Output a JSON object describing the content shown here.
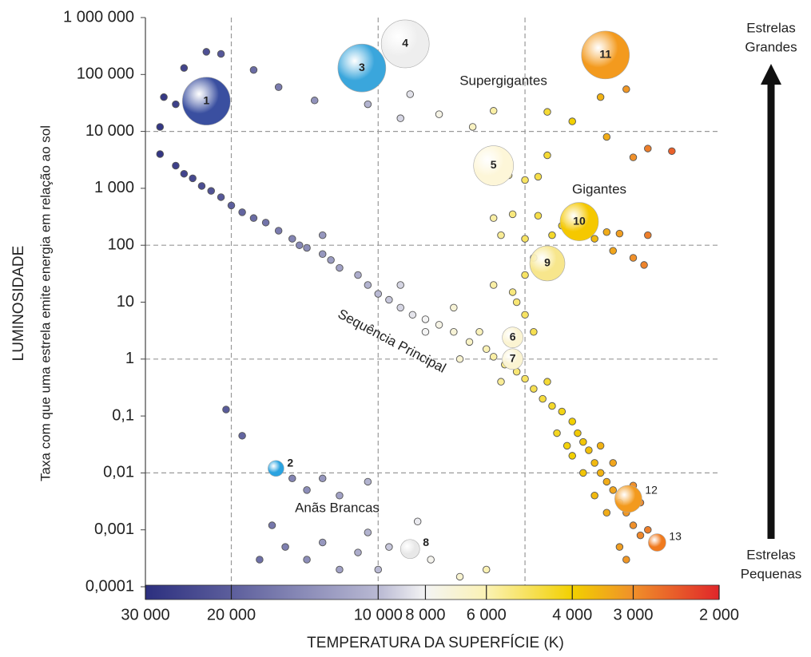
{
  "chart_data": {
    "type": "scatter",
    "x_label": "TEMPERATURA DA SUPERFÍCIE (K)",
    "y_label": "LUMINOSIDADE",
    "y_sublabel": "Taxa com que uma estrela emite energia em relação ao sol",
    "log_x": true,
    "log_y": true,
    "x_reversed": true,
    "xlim": [
      30000,
      2000
    ],
    "ylim": [
      0.0001,
      1000000
    ],
    "xticks": [
      {
        "value": 30000,
        "label": "30 000"
      },
      {
        "value": 20000,
        "label": "20 000"
      },
      {
        "value": 10000,
        "label": "10 000"
      },
      {
        "value": 8000,
        "label": "8 000"
      },
      {
        "value": 6000,
        "label": "6 000"
      },
      {
        "value": 4000,
        "label": "4 000"
      },
      {
        "value": 3000,
        "label": "3 000"
      },
      {
        "value": 2000,
        "label": "2 000"
      }
    ],
    "yticks": [
      {
        "value": 0.0001,
        "label": "0,0001"
      },
      {
        "value": 0.001,
        "label": "0,001"
      },
      {
        "value": 0.01,
        "label": "0,01"
      },
      {
        "value": 0.1,
        "label": "0,1"
      },
      1,
      10,
      100,
      {
        "value": 1000,
        "label": "1 000"
      },
      {
        "value": 10000,
        "label": "10 000"
      },
      {
        "value": 100000,
        "label": "100 000"
      },
      {
        "value": 1000000,
        "label": "1 000 000"
      }
    ],
    "grid": true,
    "xgrid": [
      20000,
      10000,
      5000
    ],
    "ygrid": [
      10000,
      100,
      1,
      0.01
    ],
    "colorscale": [
      {
        "value": 30000,
        "color": "#2c2f7f"
      },
      {
        "value": 20000,
        "color": "#5c5e9c"
      },
      {
        "value": 10000,
        "color": "#b9b9d3"
      },
      {
        "value": 8000,
        "color": "#f4f4f4"
      },
      {
        "value": 6000,
        "color": "#fbf2b4"
      },
      {
        "value": 4000,
        "color": "#f2d000"
      },
      {
        "value": 3000,
        "color": "#f0902a"
      },
      {
        "value": 2000,
        "color": "#e0262a"
      }
    ],
    "points": {
      "x": [
        28000,
        26000,
        25000,
        24000,
        23000,
        22000,
        21000,
        20000,
        19000,
        18000,
        17000,
        16000,
        15000,
        14500,
        14000,
        13000,
        12500,
        12000,
        11000,
        10500,
        10000,
        9500,
        9000,
        8500,
        8000,
        7500,
        7000,
        6500,
        6000,
        5800,
        5500,
        5200,
        5000,
        4800,
        4600,
        4400,
        4200,
        4000,
        3900,
        3800,
        3700,
        3600,
        3500,
        3400,
        3300,
        3200,
        3100,
        3000,
        2900,
        3200,
        13000,
        9000,
        8000,
        7000,
        6800,
        6200,
        5600,
        4500,
        4100,
        3500,
        3300,
        3000,
        2900,
        3400,
        3600,
        3100,
        2800,
        3800,
        4000,
        4300,
        20500,
        19000,
        15000,
        14000,
        13000,
        12000,
        10500,
        16500,
        15500,
        14000,
        13000,
        12000,
        11000,
        10500,
        10000,
        9500,
        8300,
        7800,
        6800,
        6000,
        17500,
        28000,
        27500,
        26000,
        25000,
        22500,
        21000,
        18000,
        16000,
        13500,
        10500,
        9000,
        8600,
        7500,
        6400,
        5800,
        4500,
        4000,
        3500,
        3100,
        3400,
        2800,
        2500,
        3000,
        5400,
        5000,
        4700,
        4500,
        5800,
        5600,
        5300,
        5000,
        4700,
        4400,
        4200,
        3900,
        3600,
        3400,
        3200,
        2800,
        3300,
        3000,
        2850,
        4800,
        5000,
        5300,
        5800,
        5000,
        4800,
        5200
      ],
      "y": [
        4000,
        2500,
        1800,
        1500,
        1100,
        900,
        700,
        500,
        380,
        300,
        250,
        180,
        130,
        100,
        90,
        70,
        55,
        40,
        30,
        20,
        14,
        11,
        8,
        6,
        5,
        4,
        3,
        2,
        1.5,
        1.1,
        0.8,
        0.6,
        0.45,
        0.3,
        0.2,
        0.15,
        0.12,
        0.08,
        0.05,
        0.035,
        0.025,
        0.015,
        0.01,
        0.007,
        0.005,
        0.003,
        0.002,
        0.0012,
        0.0008,
        0.0005,
        150,
        20,
        3,
        8,
        1,
        3,
        0.4,
        0.4,
        0.03,
        0.03,
        0.015,
        0.006,
        0.003,
        0.002,
        0.004,
        0.0003,
        0.001,
        0.01,
        0.02,
        0.05,
        0.13,
        0.045,
        0.008,
        0.005,
        0.008,
        0.004,
        0.007,
        0.0012,
        0.0005,
        0.0003,
        0.0006,
        0.0002,
        0.0004,
        0.0009,
        0.0002,
        0.0005,
        0.0014,
        0.0003,
        0.00015,
        0.0002,
        0.0003,
        12000,
        40000,
        30000,
        130000,
        250000,
        230000,
        120000,
        60000,
        35000,
        30000,
        17000,
        45000,
        20000,
        12000,
        23000,
        22000,
        15000,
        40000,
        55000,
        8000,
        5000,
        4500,
        3500,
        1700,
        1400,
        1600,
        3800,
        300,
        150,
        350,
        130,
        330,
        150,
        220,
        180,
        130,
        170,
        160,
        150,
        80,
        60,
        45,
        60,
        30,
        15,
        20,
        6,
        3,
        10
      ]
    },
    "stars": {
      "labels": [
        "1",
        "2",
        "3",
        "4",
        "5",
        "6",
        "7",
        "8",
        "9",
        "10",
        "11",
        "12",
        "13"
      ],
      "x": [
        22500,
        16200,
        10800,
        8800,
        5800,
        5300,
        5300,
        8600,
        4500,
        3870,
        3420,
        3070,
        2680
      ],
      "y": [
        34000,
        0.012,
        130000,
        345000,
        2500,
        2.4,
        1,
        0.00046,
        48,
        260,
        220000,
        0.0035,
        0.0006
      ],
      "sizes": [
        30,
        10,
        30,
        30,
        25,
        13,
        13,
        12,
        22,
        24,
        30,
        17,
        11
      ],
      "colors": [
        "#3a4fa0",
        "#2aa3e0",
        "#3aa6dc",
        "#eeeeee",
        "#fdf6d8",
        "#fbf4d2",
        "#fbf4d2",
        "#e8e8e8",
        "#f7e68c",
        "#f5c800",
        "#f39a1e",
        "#f39a1e",
        "#f07a1e"
      ]
    },
    "annotations": [
      "Supergigantes",
      "Gigantes",
      "Sequência Principal",
      "Anãs Brancas"
    ],
    "top_label": [
      "Estrelas",
      "Grandes"
    ],
    "bottom_label": [
      "Estrelas",
      "Pequenas"
    ]
  }
}
